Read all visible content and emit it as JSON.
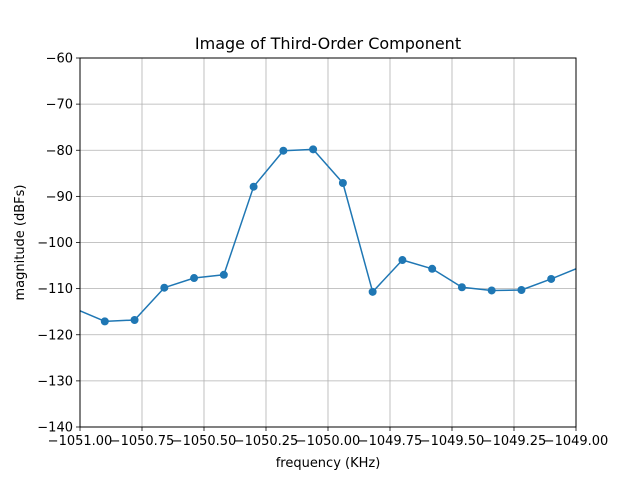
{
  "chart_data": {
    "type": "line",
    "title": "Image of Third-Order Component",
    "xlabel": "frequency (KHz)",
    "ylabel": "magnitude (dBFs)",
    "xlim": [
      -1051.0,
      -1049.0
    ],
    "ylim": [
      -140,
      -60
    ],
    "grid": true,
    "x_ticks": [
      -1051.0,
      -1050.75,
      -1050.5,
      -1050.25,
      -1050.0,
      -1049.75,
      -1049.5,
      -1049.25,
      -1049.0
    ],
    "x_tick_labels": [
      "−1051.00",
      "−1050.75",
      "−1050.50",
      "−1050.25",
      "−1050.00",
      "−1049.75",
      "−1049.50",
      "−1049.25",
      "−1049.00"
    ],
    "y_ticks": [
      -140,
      -130,
      -120,
      -110,
      -100,
      -90,
      -80,
      -70,
      -60
    ],
    "y_tick_labels": [
      "−140",
      "−130",
      "−120",
      "−110",
      "−100",
      "−90",
      "−80",
      "−70",
      "−60"
    ],
    "series": [
      {
        "color": "#1f77b4",
        "marker": "circle",
        "x": [
          -1051.0,
          -1050.9,
          -1050.78,
          -1050.66,
          -1050.54,
          -1050.42,
          -1050.3,
          -1050.18,
          -1050.06,
          -1049.94,
          -1049.82,
          -1049.7,
          -1049.58,
          -1049.46,
          -1049.34,
          -1049.22,
          -1049.1,
          -1049.0
        ],
        "y": [
          -114.8,
          -117.1,
          -116.8,
          -109.8,
          -107.7,
          -107.0,
          -87.9,
          -80.1,
          -79.8,
          -87.1,
          -110.7,
          -103.8,
          -105.7,
          -109.7,
          -110.4,
          -110.3,
          -107.9,
          -105.7
        ],
        "markers_shown": [
          false,
          true,
          true,
          true,
          true,
          true,
          true,
          true,
          true,
          true,
          true,
          true,
          true,
          true,
          true,
          true,
          true,
          false
        ]
      }
    ]
  }
}
